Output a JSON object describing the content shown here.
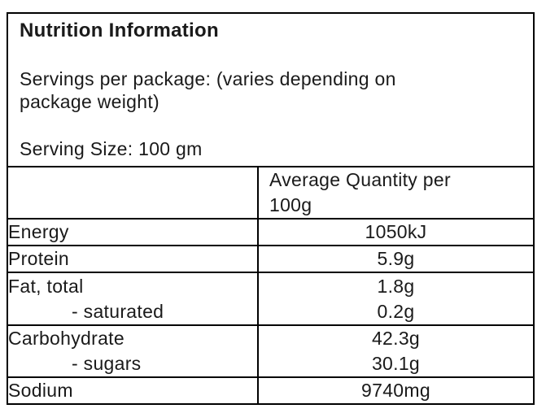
{
  "label": {
    "title": "Nutrition Information",
    "servings_per_package": "Servings per package: (varies depending on package weight)",
    "serving_size": "Serving Size: 100 gm"
  },
  "table": {
    "header": {
      "name_column": "",
      "quantity_column": "Average Quantity per 100g"
    },
    "rows": [
      {
        "name": "Energy",
        "value": "1050kJ"
      },
      {
        "name": "Protein",
        "value": "5.9g"
      },
      {
        "name": "Fat, total",
        "value": "1.8g",
        "sub_name": "- saturated",
        "sub_value": "0.2g"
      },
      {
        "name": "Carbohydrate",
        "value": "42.3g",
        "sub_name": "- sugars",
        "sub_value": "30.1g"
      },
      {
        "name": "Sodium",
        "value": "9740mg"
      }
    ]
  },
  "colors": {
    "border": "#000000",
    "text": "#1a1a1a",
    "background": "#ffffff"
  }
}
